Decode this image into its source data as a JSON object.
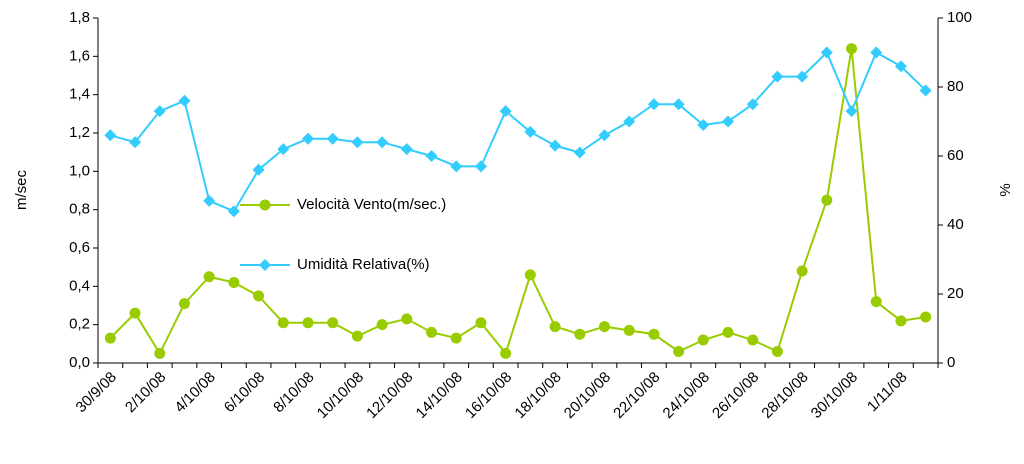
{
  "chart_data": {
    "type": "line",
    "categories": [
      "30/9/08",
      null,
      "2/10/08",
      null,
      "4/10/08",
      null,
      "6/10/08",
      null,
      "8/10/08",
      null,
      "10/10/08",
      null,
      "12/10/08",
      null,
      "14/10/08",
      null,
      "16/10/08",
      null,
      "18/10/08",
      null,
      "20/10/08",
      null,
      "22/10/08",
      null,
      "24/10/08",
      null,
      "26/10/08",
      null,
      "28/10/08",
      null,
      "30/10/08",
      null,
      "1/11/08",
      null
    ],
    "y_label": "m/sec",
    "y2_label": "%",
    "ylim": [
      0,
      1.8
    ],
    "yticks": [
      {
        "value": 0,
        "label": "0,0"
      },
      {
        "value": 0.2,
        "label": "0,2"
      },
      {
        "value": 0.4,
        "label": "0,4"
      },
      {
        "value": 0.6,
        "label": "0,6"
      },
      {
        "value": 0.8,
        "label": "0,8"
      },
      {
        "value": 1.0,
        "label": "1,0"
      },
      {
        "value": 1.2,
        "label": "1,2"
      },
      {
        "value": 1.4,
        "label": "1,4"
      },
      {
        "value": 1.6,
        "label": "1,6"
      },
      {
        "value": 1.8,
        "label": "1,8"
      }
    ],
    "y2lim": [
      0,
      100
    ],
    "y2ticks": [
      0,
      20,
      40,
      60,
      80,
      100
    ],
    "legend": "center-left",
    "series": [
      {
        "name": "Velocità Vento(m/sec.)",
        "color": "#99cc00",
        "marker": "circle",
        "values": [
          0.13,
          0.26,
          0.05,
          0.31,
          0.45,
          0.42,
          0.35,
          0.21,
          0.21,
          0.21,
          0.14,
          0.2,
          0.23,
          0.16,
          0.13,
          0.21,
          0.05,
          0.46,
          0.19,
          0.15,
          0.19,
          0.17,
          0.15,
          0.06,
          0.12,
          0.16,
          0.12,
          0.06,
          0.48,
          0.85,
          1.64,
          0.32,
          0.22,
          0.24
        ]
      },
      {
        "name": "Umidità Relativa(%)",
        "color": "#33ccff",
        "marker": "diamond",
        "axis": "y2",
        "values": [
          66,
          64,
          73,
          76,
          47,
          44,
          56,
          62,
          65,
          65,
          64,
          64,
          62,
          60,
          57,
          57,
          73,
          67,
          63,
          61,
          66,
          70,
          75,
          75,
          69,
          70,
          75,
          83,
          83,
          90,
          73,
          90,
          86,
          79
        ]
      }
    ]
  }
}
